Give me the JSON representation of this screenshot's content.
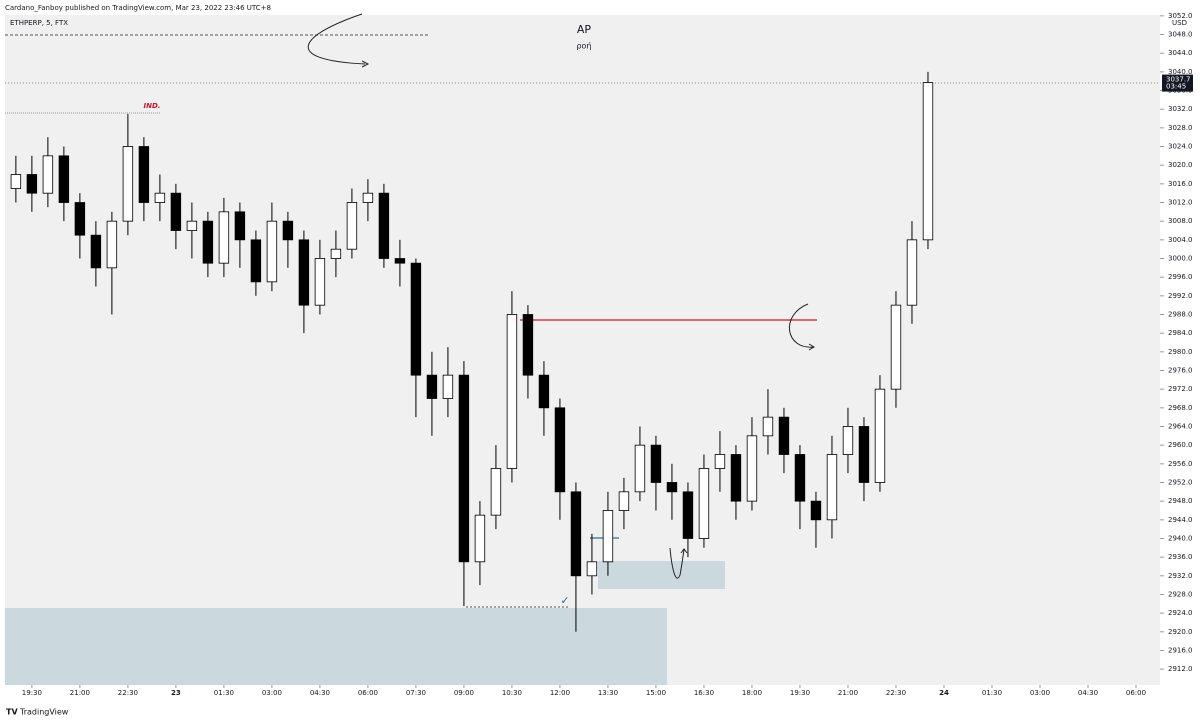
{
  "chart_data": {
    "type": "candlestick",
    "header": "Cardano_Fanboy published on TradingView.com, Mar 23, 2022 23:46 UTC+8",
    "symbol": "ETHPERP, 5, FTX",
    "title": "AP",
    "subtitle": "ρoή",
    "currency": "USD",
    "countdown": "03:45",
    "annotations": [
      "IND.",
      "✓"
    ],
    "brand": "TradingView",
    "up_color": "#ffffff",
    "down_color": "#000000",
    "x": [
      -0.5,
      0,
      0.5,
      1,
      1.5,
      2,
      2.5,
      3,
      3.5,
      4,
      4.5,
      5,
      5.5,
      6,
      6.5,
      7,
      7.5,
      8,
      8.5,
      9,
      9.5,
      10,
      10.5,
      11,
      11.5,
      12,
      12.5,
      13,
      13.5,
      14,
      14.5,
      15,
      15.5,
      16,
      16.5,
      17,
      17.5,
      18,
      18.5,
      19,
      19.5,
      20,
      20.5,
      21,
      21.5,
      22,
      22.5,
      23,
      23.5,
      24,
      24.5,
      25,
      25.5,
      26,
      26.5,
      27,
      27.5,
      28
    ],
    "open": [
      3015,
      3018,
      3014,
      3022,
      3012,
      3005,
      2998,
      3008,
      3024,
      3012,
      3014,
      3006,
      3008,
      2999,
      3010,
      3004,
      2995,
      3008,
      3004,
      2990,
      3000,
      3002,
      3012,
      3014,
      3000,
      2999,
      2975,
      2970,
      2975,
      2935,
      2945,
      2955,
      2988,
      2975,
      2968,
      2950,
      2932,
      2935,
      2946,
      2950,
      2960,
      2952,
      2950,
      2940,
      2955,
      2958,
      2948,
      2962,
      2966,
      2958,
      2948,
      2944,
      2958,
      2964,
      2952,
      2972,
      2990,
      3004
    ],
    "high": [
      3022,
      3022,
      3026,
      3024,
      3014,
      3008,
      3010,
      3031,
      3026,
      3018,
      3016,
      3012,
      3010,
      3013,
      3012,
      3006,
      3012,
      3010,
      3006,
      3004,
      3006,
      3015,
      3017,
      3016,
      3004,
      3000,
      2980,
      2981,
      2978,
      2948,
      2960,
      2993,
      2990,
      2978,
      2970,
      2952,
      2941,
      2950,
      2953,
      2964,
      2962,
      2956,
      2952,
      2958,
      2963,
      2960,
      2966,
      2972,
      2968,
      2960,
      2950,
      2962,
      2968,
      2966,
      2975,
      2993,
      3008,
      3040
    ],
    "low": [
      3012,
      3010,
      3011,
      3008,
      3000,
      2994,
      2988,
      3005,
      3008,
      3008,
      3002,
      3000,
      2996,
      2996,
      2998,
      2992,
      2993,
      2998,
      2984,
      2988,
      2996,
      3000,
      3008,
      2998,
      2994,
      2966,
      2962,
      2966,
      2925.5,
      2930,
      2942,
      2952,
      2970,
      2962,
      2944,
      2920,
      2928,
      2932,
      2942,
      2948,
      2946,
      2944,
      2936,
      2938,
      2950,
      2944,
      2946,
      2958,
      2954,
      2942,
      2938,
      2940,
      2954,
      2948,
      2950,
      2968,
      2986,
      3002
    ],
    "close": [
      3018,
      3014,
      3022,
      3012,
      3005,
      2998,
      3008,
      3024,
      3012,
      3014,
      3006,
      3008,
      2999,
      3010,
      3004,
      2995,
      3008,
      3004,
      2990,
      3000,
      3002,
      3012,
      3014,
      3000,
      2999,
      2975,
      2970,
      2975,
      2935,
      2945,
      2955,
      2988,
      2975,
      2968,
      2950,
      2932,
      2935,
      2946,
      2950,
      2960,
      2952,
      2950,
      2940,
      2955,
      2958,
      2948,
      2962,
      2966,
      2958,
      2948,
      2944,
      2958,
      2964,
      2952,
      2972,
      2990,
      3004,
      3037.7
    ],
    "xlim": [
      -0.84,
      35.25
    ],
    "xticks": [
      {
        "value": 0,
        "label": "19:30"
      },
      {
        "value": 1.5,
        "label": "21:00"
      },
      {
        "value": 3,
        "label": "22:30"
      },
      {
        "value": 4.5,
        "label": "23"
      },
      {
        "value": 6,
        "label": "01:30"
      },
      {
        "value": 7.5,
        "label": "03:00"
      },
      {
        "value": 9,
        "label": "04:30"
      },
      {
        "value": 10.5,
        "label": "06:00"
      },
      {
        "value": 12,
        "label": "07:30"
      },
      {
        "value": 13.5,
        "label": "09:00"
      },
      {
        "value": 15,
        "label": "10:30"
      },
      {
        "value": 16.5,
        "label": "12:00"
      },
      {
        "value": 18,
        "label": "13:30"
      },
      {
        "value": 19.5,
        "label": "15:00"
      },
      {
        "value": 21,
        "label": "16:30"
      },
      {
        "value": 22.5,
        "label": "18:00"
      },
      {
        "value": 24,
        "label": "19:30"
      },
      {
        "value": 25.5,
        "label": "21:00"
      },
      {
        "value": 27,
        "label": "22:30"
      },
      {
        "value": 28.5,
        "label": "24"
      },
      {
        "value": 30,
        "label": "01:30"
      },
      {
        "value": 31.5,
        "label": "03:00"
      },
      {
        "value": 33,
        "label": "04:30"
      },
      {
        "value": 34.5,
        "label": "06:00"
      }
    ],
    "ylim": [
      2908.6,
      3055.4
    ],
    "yticks": [
      {
        "value": 2912,
        "label": "2912.0"
      },
      {
        "value": 2916,
        "label": "2916.0"
      },
      {
        "value": 2920,
        "label": "2920.0"
      },
      {
        "value": 2924,
        "label": "2924.0"
      },
      {
        "value": 2928,
        "label": "2928.0"
      },
      {
        "value": 2932,
        "label": "2932.0"
      },
      {
        "value": 2936,
        "label": "2936.0"
      },
      {
        "value": 2940,
        "label": "2940.0"
      },
      {
        "value": 2944,
        "label": "2944.0"
      },
      {
        "value": 2948,
        "label": "2948.0"
      },
      {
        "value": 2952,
        "label": "2952.0"
      },
      {
        "value": 2956,
        "label": "2956.0"
      },
      {
        "value": 2960,
        "label": "2960.0"
      },
      {
        "value": 2964,
        "label": "2964.0"
      },
      {
        "value": 2968,
        "label": "2968.0"
      },
      {
        "value": 2972,
        "label": "2972.0"
      },
      {
        "value": 2976,
        "label": "2976.0"
      },
      {
        "value": 2980,
        "label": "2980.0"
      },
      {
        "value": 2984,
        "label": "2984.0"
      },
      {
        "value": 2988,
        "label": "2988.0"
      },
      {
        "value": 2992,
        "label": "2992.0"
      },
      {
        "value": 2996,
        "label": "2996.0"
      },
      {
        "value": 3000,
        "label": "3000.0"
      },
      {
        "value": 3004,
        "label": "3004.0"
      },
      {
        "value": 3008,
        "label": "3008.0"
      },
      {
        "value": 3012,
        "label": "3012.0"
      },
      {
        "value": 3016,
        "label": "3016.0"
      },
      {
        "value": 3020,
        "label": "3020.0"
      },
      {
        "value": 3024,
        "label": "3024.0"
      },
      {
        "value": 3028,
        "label": "3028.0"
      },
      {
        "value": 3032,
        "label": "3032.0"
      },
      {
        "value": 3036,
        "label": "3036.0"
      },
      {
        "value": 3040,
        "label": "3040.0"
      },
      {
        "value": 3044,
        "label": "3044.0"
      },
      {
        "value": 3048,
        "label": "3048.0"
      },
      {
        "value": 3052,
        "label": "3052.0"
      }
    ]
  }
}
